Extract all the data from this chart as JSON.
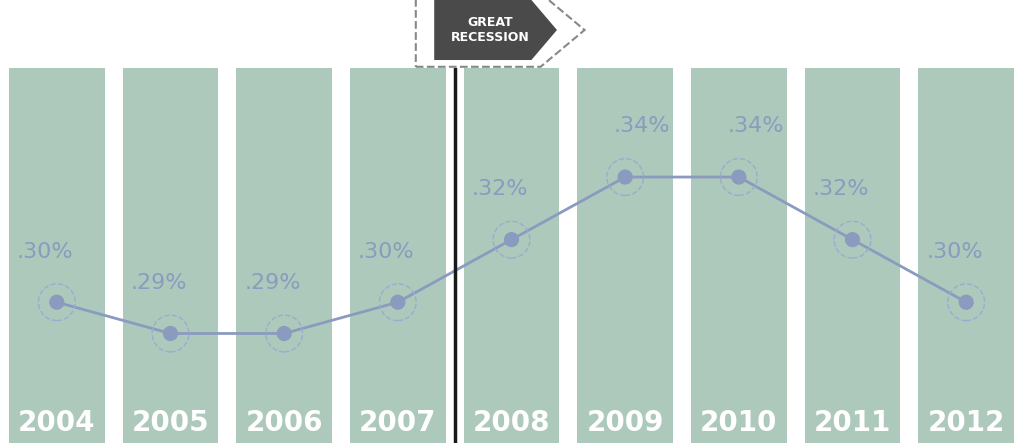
{
  "years": [
    2004,
    2005,
    2006,
    2007,
    2008,
    2009,
    2010,
    2011,
    2012
  ],
  "values": [
    0.3,
    0.29,
    0.29,
    0.3,
    0.32,
    0.34,
    0.34,
    0.32,
    0.3
  ],
  "labels": [
    ".30%",
    ".29%",
    ".29%",
    ".30%",
    ".32%",
    ".34%",
    ".34%",
    ".32%",
    ".30%"
  ],
  "bar_color": "#adc9bb",
  "line_color": "#8a9bbf",
  "marker_fill_color": "#8a9bbf",
  "marker_dash_color": "#9aabcf",
  "year_label_color": "#ffffff",
  "value_label_color": "#8a9bbf",
  "background_color": "#ffffff",
  "sign_bg_color": "#4a4a4a",
  "sign_edge_color": "#cccccc",
  "sign_text_color": "#ffffff",
  "recession_line_color": "#1a1a1a",
  "ylim_min": 0.255,
  "ylim_max": 0.375,
  "year_label_fontsize": 20,
  "value_label_fontsize": 16,
  "recession_fontsize": 9,
  "bar_width": 0.84,
  "recession_bar_index": 3.5
}
